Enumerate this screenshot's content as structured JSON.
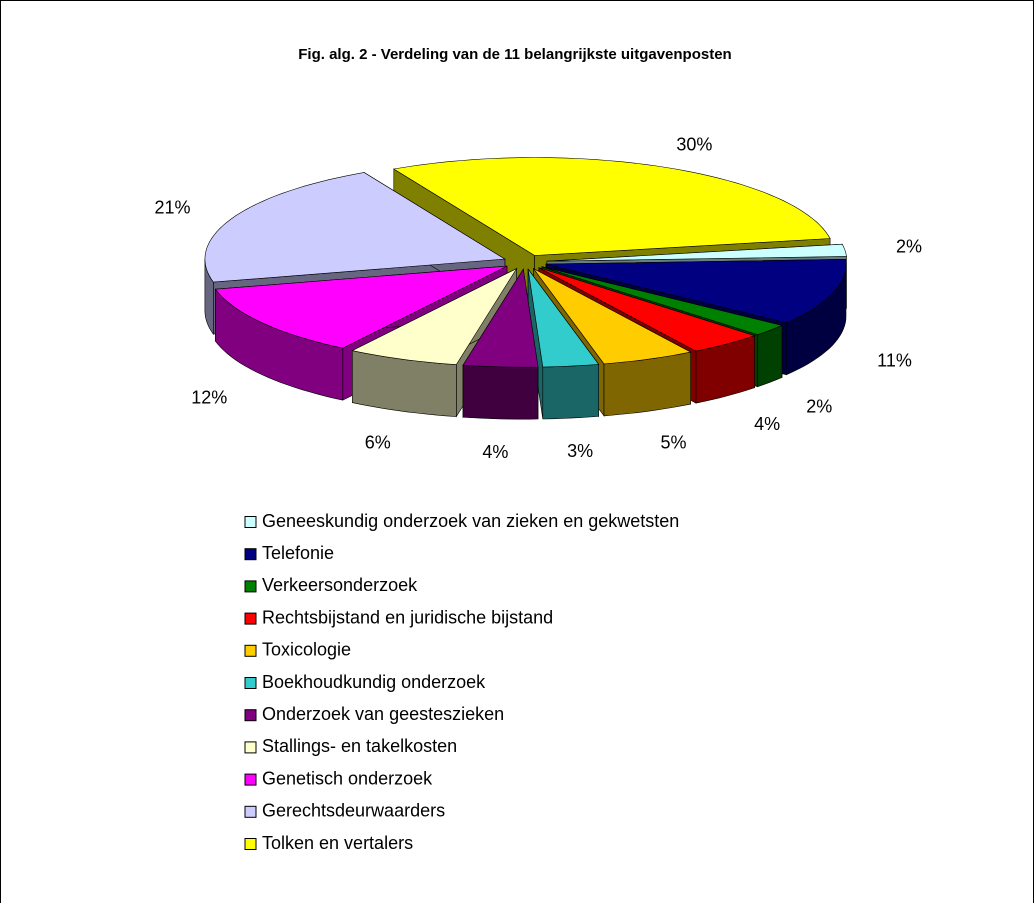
{
  "chart_data": {
    "type": "pie3d",
    "title": "Fig. alg. 2 - Verdeling van de 11 belangrijkste uitgavenposten",
    "categories": [
      "Geneeskundig onderzoek van zieken en gekwetsten",
      "Telefonie",
      "Verkeersonderzoek",
      "Rechtsbijstand en juridische bijstand",
      "Toxicologie",
      "Boekhoudkundig onderzoek",
      "Onderzoek van geesteszieken",
      "Stallings- en takelkosten",
      "Genetisch onderzoek",
      "Gerechtsdeurwaarders",
      "Tolken en vertalers"
    ],
    "values": [
      2,
      11,
      2,
      4,
      5,
      3,
      4,
      6,
      12,
      21,
      30
    ],
    "value_labels": [
      "2%",
      "11%",
      "2%",
      "4%",
      "5%",
      "3%",
      "4%",
      "6%",
      "12%",
      "21%",
      "30%"
    ],
    "colors": [
      "#ccffff",
      "#000080",
      "#008000",
      "#ff0000",
      "#ffcc00",
      "#33cccc",
      "#800080",
      "#ffffcc",
      "#ff00ff",
      "#ccccff",
      "#ffff00"
    ],
    "legend": "bottom"
  }
}
